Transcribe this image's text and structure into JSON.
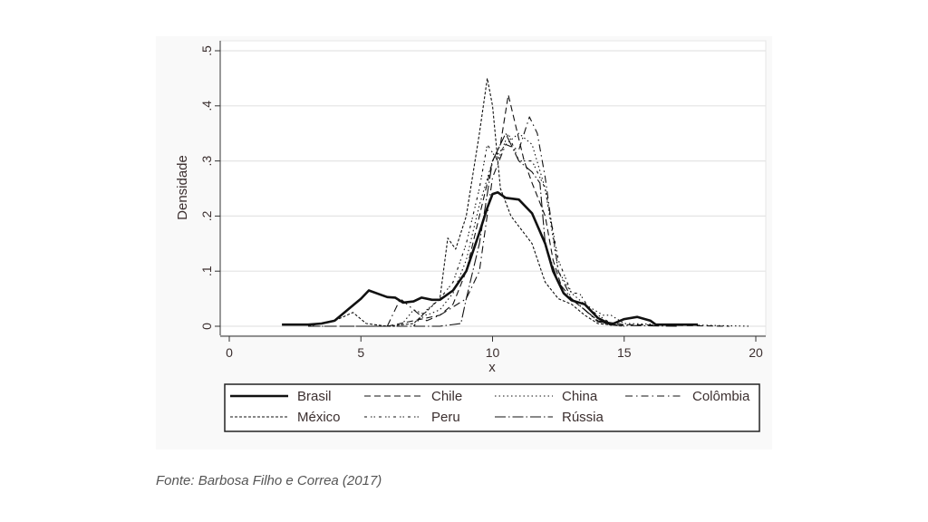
{
  "chart_data": {
    "type": "line",
    "title": "",
    "xlabel": "x",
    "ylabel": "Densidade",
    "xlim": [
      0,
      20
    ],
    "ylim": [
      0,
      0.5
    ],
    "xticks": [
      "0",
      "5",
      "10",
      "15",
      "20"
    ],
    "xtick_values": [
      0,
      5,
      10,
      15,
      20
    ],
    "yticks": [
      "0",
      ".1",
      ".2",
      ".3",
      ".4",
      ".5"
    ],
    "ytick_values": [
      0,
      0.1,
      0.2,
      0.3,
      0.4,
      0.5
    ],
    "grid": "horizontal",
    "legend_position": "bottom",
    "series": [
      {
        "name": "Brasil",
        "dash": "",
        "width": 2.6,
        "x": [
          2,
          3,
          3.5,
          4,
          4.5,
          5,
          5.3,
          5.7,
          6,
          6.3,
          6.6,
          7,
          7.3,
          7.7,
          8,
          8.5,
          9,
          9.5,
          9.8,
          10,
          10.2,
          10.5,
          11,
          11.5,
          12,
          12.3,
          12.7,
          13,
          13.5,
          14,
          14.5,
          15,
          15.5,
          16,
          16.2,
          17.8
        ],
        "y": [
          0.003,
          0.003,
          0.005,
          0.01,
          0.03,
          0.05,
          0.065,
          0.058,
          0.053,
          0.052,
          0.043,
          0.045,
          0.052,
          0.048,
          0.048,
          0.065,
          0.1,
          0.17,
          0.215,
          0.24,
          0.243,
          0.233,
          0.23,
          0.205,
          0.15,
          0.1,
          0.06,
          0.047,
          0.04,
          0.015,
          0.003,
          0.013,
          0.017,
          0.01,
          0.003,
          0.003
        ]
      },
      {
        "name": "Chile",
        "dash": "7 4",
        "width": 1.1,
        "x": [
          6,
          7,
          8,
          8.5,
          9,
          9.5,
          10,
          10.3,
          10.6,
          10.9,
          11.2,
          11.5,
          12,
          12.3,
          12.7,
          13.5,
          14,
          15,
          19
        ],
        "y": [
          0,
          0.01,
          0.02,
          0.04,
          0.1,
          0.2,
          0.3,
          0.33,
          0.42,
          0.36,
          0.3,
          0.26,
          0.2,
          0.12,
          0.06,
          0.03,
          0.01,
          0.003,
          0
        ]
      },
      {
        "name": "China",
        "dash": "1.5 3",
        "width": 1.1,
        "x": [
          5,
          6.5,
          7,
          7.5,
          8,
          8.5,
          9,
          9.5,
          10,
          10.5,
          11,
          11.5,
          12,
          12.5,
          13,
          13.5,
          14.2,
          14.5,
          15,
          19.8
        ],
        "y": [
          0,
          0,
          0.03,
          0.02,
          0.03,
          0.06,
          0.12,
          0.22,
          0.3,
          0.33,
          0.35,
          0.33,
          0.25,
          0.1,
          0.06,
          0.04,
          0.02,
          0.02,
          0.005,
          0
        ]
      },
      {
        "name": "Colômbia",
        "dash": "8 4 1.5 4",
        "width": 1.1,
        "x": [
          3,
          6,
          6.5,
          7,
          7.5,
          8,
          9,
          9.5,
          10,
          10.5,
          11,
          11.4,
          11.7,
          12,
          12.2,
          12.5,
          13,
          13.5,
          14,
          15
        ],
        "y": [
          0,
          0,
          0.05,
          0.03,
          0.01,
          0.02,
          0.05,
          0.1,
          0.27,
          0.33,
          0.32,
          0.38,
          0.35,
          0.27,
          0.2,
          0.1,
          0.05,
          0.03,
          0.008,
          0
        ]
      },
      {
        "name": "México",
        "dash": "3 2",
        "width": 1.1,
        "x": [
          3,
          4,
          4.7,
          5.2,
          6,
          7,
          8,
          8.3,
          8.6,
          9,
          9.5,
          9.8,
          10,
          10.3,
          10.7,
          11.5,
          12,
          12.5,
          13,
          13.5,
          14,
          15
        ],
        "y": [
          0,
          0.01,
          0.025,
          0.005,
          0,
          0.005,
          0.05,
          0.16,
          0.14,
          0.2,
          0.35,
          0.45,
          0.4,
          0.25,
          0.2,
          0.15,
          0.08,
          0.05,
          0.04,
          0.02,
          0.005,
          0
        ]
      },
      {
        "name": "Peru",
        "dash": "3 4 1.5 2 1.5 4",
        "width": 1.1,
        "x": [
          7,
          7.5,
          8,
          8.5,
          9,
          9.5,
          9.8,
          10.2,
          10.6,
          11,
          11.5,
          12,
          12.5,
          13,
          13.3,
          13.7,
          14.5
        ],
        "y": [
          0,
          0.03,
          0.05,
          0.08,
          0.15,
          0.25,
          0.33,
          0.3,
          0.35,
          0.3,
          0.3,
          0.25,
          0.12,
          0.06,
          0.06,
          0.03,
          0.005
        ]
      },
      {
        "name": "Rússia",
        "dash": "12 3 1.5 3",
        "width": 1.1,
        "x": [
          3,
          8,
          8.8,
          9,
          9.5,
          10,
          10.5,
          11,
          11.5,
          11.8,
          12,
          12.5,
          13,
          13.5,
          14,
          14.5,
          17
        ],
        "y": [
          0,
          0,
          0.005,
          0.05,
          0.15,
          0.3,
          0.35,
          0.3,
          0.28,
          0.26,
          0.15,
          0.08,
          0.05,
          0.03,
          0.01,
          0.002,
          0
        ]
      }
    ]
  },
  "caption": "Fonte: Barbosa Filho e Correa (2017)"
}
